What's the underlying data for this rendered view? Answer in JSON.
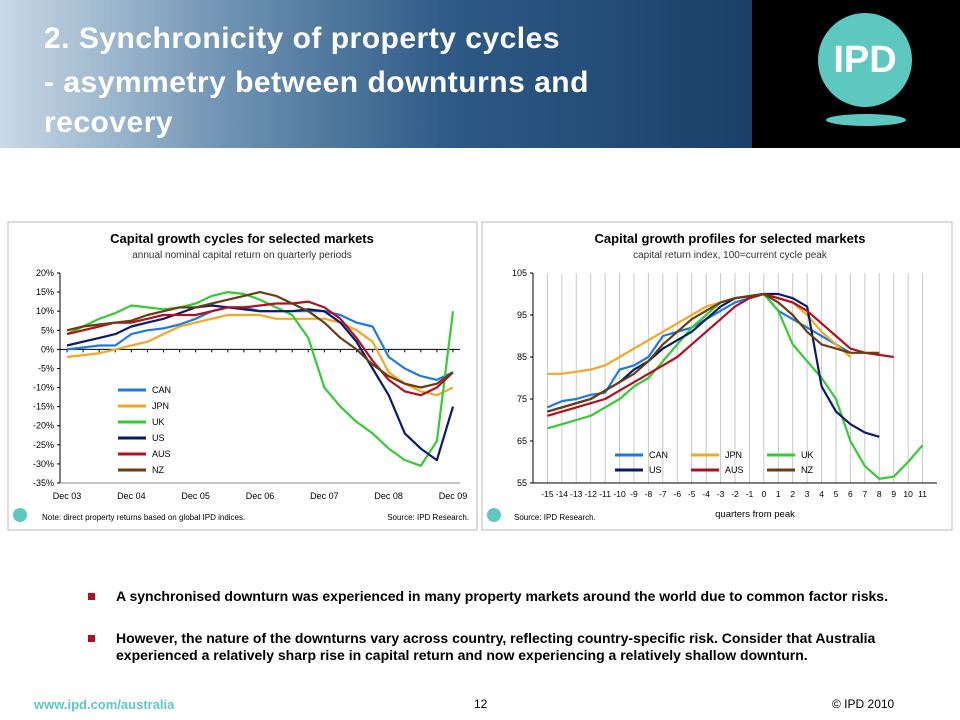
{
  "header": {
    "title_lines": [
      "2. Synchronicity of property cycles",
      "- asymmetry between downturns and",
      "recovery"
    ],
    "logo": "IPD"
  },
  "chart_data": [
    {
      "type": "line",
      "title": "Capital growth cycles for selected markets",
      "subtitle": "annual nominal capital return on quarterly periods",
      "note": "Note: direct property returns based on global IPD indices.",
      "source": "Source: IPD Research.",
      "categories": [
        "Dec 03",
        null,
        null,
        null,
        "Dec 04",
        null,
        null,
        null,
        "Dec 05",
        null,
        null,
        null,
        "Dec 06",
        null,
        null,
        null,
        "Dec 07",
        null,
        null,
        null,
        "Dec 08",
        null,
        null,
        null,
        "Dec 09"
      ],
      "ylim": [
        -35,
        20
      ],
      "yticks": [
        {
          "value": 20,
          "label": "20%"
        },
        {
          "value": 15,
          "label": "15%"
        },
        {
          "value": 10,
          "label": "10%"
        },
        {
          "value": 5,
          "label": "5%"
        },
        {
          "value": 0,
          "label": "0%"
        },
        {
          "value": -5,
          "label": "-5%"
        },
        {
          "value": -10,
          "label": "-10%"
        },
        {
          "value": -15,
          "label": "-15%"
        },
        {
          "value": -20,
          "label": "-20%"
        },
        {
          "value": -25,
          "label": "-25%"
        },
        {
          "value": -30,
          "label": "-30%"
        },
        {
          "value": -35,
          "label": "-35%"
        }
      ],
      "grid": false,
      "legend": "lower left",
      "series": [
        {
          "name": "CAN",
          "color": "#1f7ae0",
          "values": [
            0,
            0.5,
            1,
            1,
            4,
            5,
            5.5,
            6.5,
            8,
            10,
            11,
            11,
            10,
            10,
            10,
            10,
            10,
            9,
            7,
            6,
            -2,
            -5,
            -7,
            -8,
            -6
          ]
        },
        {
          "name": "JPN",
          "color": "#f5a623",
          "values": [
            -2,
            -1.5,
            -1,
            0,
            1,
            2,
            4,
            6,
            7,
            8,
            9,
            9,
            9,
            8,
            8,
            8,
            8,
            7,
            5,
            2,
            -6,
            -9,
            -11,
            -12,
            -10
          ]
        },
        {
          "name": "UK",
          "color": "#33cc33",
          "values": [
            4,
            6,
            8,
            9.5,
            11.5,
            11,
            10.5,
            11,
            12,
            14,
            15,
            14.5,
            13,
            11,
            9,
            3,
            -10,
            -15,
            -19,
            -22,
            -26,
            -29,
            -30.5,
            -24,
            10
          ]
        },
        {
          "name": "US",
          "color": "#0a1a6a",
          "values": [
            1,
            2,
            3,
            4,
            6,
            7,
            8,
            9.5,
            11,
            11.5,
            11,
            10.5,
            10,
            10,
            10,
            10.5,
            10,
            7,
            2,
            -5,
            -12,
            -22,
            -26,
            -29,
            -15
          ]
        },
        {
          "name": "AUS",
          "color": "#b01020",
          "values": [
            4,
            5,
            6,
            7,
            7,
            8,
            9,
            9,
            9,
            10,
            11,
            11,
            11.5,
            12,
            12,
            12.5,
            11,
            8,
            3,
            -3,
            -8,
            -11,
            -12,
            -10,
            -6
          ]
        },
        {
          "name": "NZ",
          "color": "#6b3d10",
          "values": [
            5,
            6,
            6.5,
            7,
            7.5,
            9,
            10,
            11,
            11,
            12,
            13,
            14,
            15,
            14,
            12,
            10,
            7,
            3,
            0,
            -4,
            -7,
            -9,
            -10,
            -9,
            -6
          ]
        }
      ]
    },
    {
      "type": "line",
      "title": "Capital growth profiles for selected markets",
      "subtitle": "capital return index, 100=current cycle peak",
      "source": "Source: IPD Research.",
      "x_label": "quarters from peak",
      "x": [
        -15,
        -14,
        -13,
        -12,
        -11,
        -10,
        -9,
        -8,
        -7,
        -6,
        -5,
        -4,
        -3,
        -2,
        -1,
        0,
        1,
        2,
        3,
        4,
        5,
        6,
        7,
        8,
        9,
        10,
        11
      ],
      "xlim": [
        -16,
        12
      ],
      "xticks": [
        -15,
        -14,
        -13,
        -12,
        -11,
        -10,
        -9,
        -8,
        -7,
        -6,
        -5,
        -4,
        -3,
        -2,
        -1,
        0,
        1,
        2,
        3,
        4,
        5,
        6,
        7,
        8,
        9,
        10,
        11
      ],
      "ylim": [
        55,
        105
      ],
      "yticks": [
        105,
        95,
        85,
        75,
        65,
        55
      ],
      "grid": "x",
      "legend": "bottom",
      "series": [
        {
          "name": "CAN",
          "color": "#1f7ae0",
          "values": [
            73,
            74.5,
            75,
            76,
            76.5,
            82,
            83,
            85,
            90,
            91,
            92,
            94,
            96,
            98,
            99,
            100,
            96,
            94,
            92,
            90,
            88,
            86,
            null,
            null,
            null,
            null,
            null
          ]
        },
        {
          "name": "JPN",
          "color": "#f5a623",
          "values": [
            81,
            81,
            81.5,
            82,
            83,
            85,
            87,
            89,
            91,
            93,
            95,
            97,
            98,
            99,
            99.5,
            100,
            99,
            98,
            95,
            91,
            88,
            85,
            null,
            null,
            null,
            null,
            null
          ]
        },
        {
          "name": "UK",
          "color": "#33cc33",
          "values": [
            68,
            69,
            70,
            71,
            73,
            75,
            78,
            80,
            84,
            88,
            92,
            95,
            98,
            99,
            99.5,
            100,
            96,
            88,
            84,
            80,
            75,
            65,
            59,
            56,
            56.5,
            60,
            64
          ]
        },
        {
          "name": "US",
          "color": "#0a1a6a",
          "values": [
            72,
            73,
            74,
            75,
            77,
            79,
            82,
            84,
            87,
            89,
            91,
            94,
            97,
            99,
            99.5,
            100,
            100,
            99,
            97,
            78,
            72,
            69,
            67,
            66,
            null,
            null,
            null
          ]
        },
        {
          "name": "AUS",
          "color": "#b01020",
          "values": [
            71,
            72,
            73,
            74,
            75,
            77,
            79,
            81,
            83,
            85,
            88,
            91,
            94,
            97,
            99,
            100,
            99,
            98,
            96,
            93,
            90,
            87,
            86,
            85.5,
            85,
            null,
            null
          ]
        },
        {
          "name": "NZ",
          "color": "#6b3d10",
          "values": [
            72,
            73,
            74,
            75,
            77,
            79,
            81,
            84,
            88,
            91,
            94,
            96,
            98,
            99,
            99.5,
            100,
            98,
            95,
            91,
            88,
            87,
            86,
            86,
            86,
            null,
            null,
            null
          ]
        }
      ]
    }
  ],
  "bullets": [
    "A synchronised downturn was experienced in many property markets around the world due to common factor risks.",
    "However, the nature of the downturns vary across country, reflecting country-specific risk. Consider that Australia experienced a relatively sharp rise in capital return and now experiencing a relatively shallow downturn."
  ],
  "footer": {
    "url": "www.ipd.com/australia",
    "page": "12",
    "copyright": "© IPD 2010"
  }
}
